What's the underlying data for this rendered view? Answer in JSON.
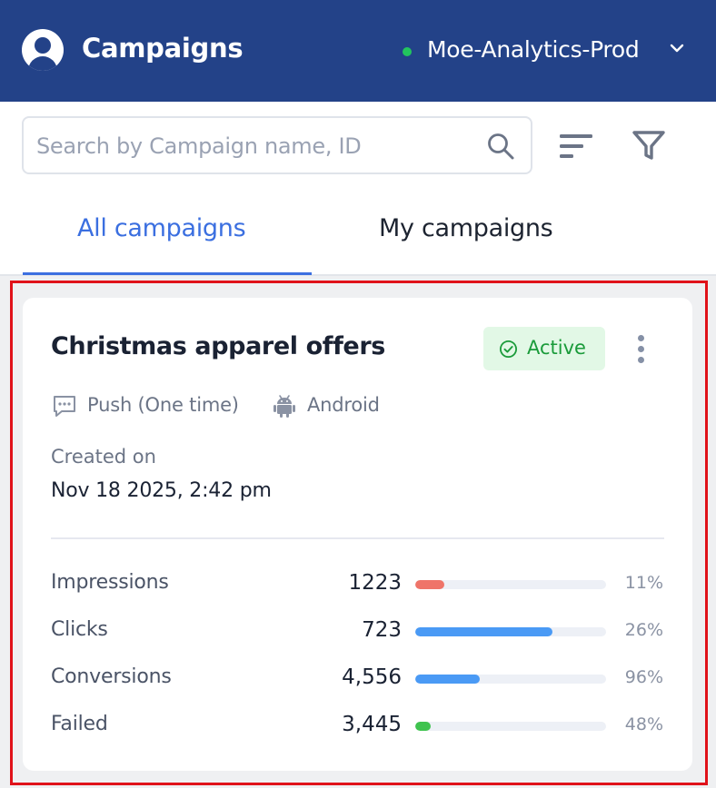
{
  "header": {
    "app_title": "Campaigns",
    "account_name": "Moe-Analytics-Prod",
    "account_status_color": "#22c55e",
    "icons": [
      "user-avatar-icon",
      "chevron-down-icon"
    ]
  },
  "search": {
    "placeholder": "Search by Campaign name, ID",
    "value": "",
    "icons": [
      "search-icon",
      "sort-icon",
      "filter-icon"
    ]
  },
  "tabs": [
    {
      "label": "All campaigns",
      "active": true
    },
    {
      "label": "My campaigns",
      "active": false
    }
  ],
  "campaign": {
    "title": "Christmas apparel offers",
    "status": "Active",
    "channel": "Push (One time)",
    "platform": "Android",
    "created_label": "Created on",
    "created_value": "Nov 18 2025, 2:42 pm",
    "metrics": [
      {
        "label": "Impressions",
        "value": "1223",
        "percent_label": "11%",
        "bar_fraction": 0.15,
        "bar_color": "#ef7469"
      },
      {
        "label": "Clicks",
        "value": "723",
        "percent_label": "26%",
        "bar_fraction": 0.72,
        "bar_color": "#4a9af5"
      },
      {
        "label": "Conversions",
        "value": "4,556",
        "percent_label": "96%",
        "bar_fraction": 0.34,
        "bar_color": "#4a9af5"
      },
      {
        "label": "Failed",
        "value": "3,445",
        "percent_label": "48%",
        "bar_fraction": 0.08,
        "bar_color": "#3fc34f"
      }
    ]
  },
  "colors": {
    "header_bg": "#234288",
    "accent": "#3b6fe0",
    "active_badge_bg": "#e2f8e6",
    "active_badge_text": "#1a9b3a"
  }
}
